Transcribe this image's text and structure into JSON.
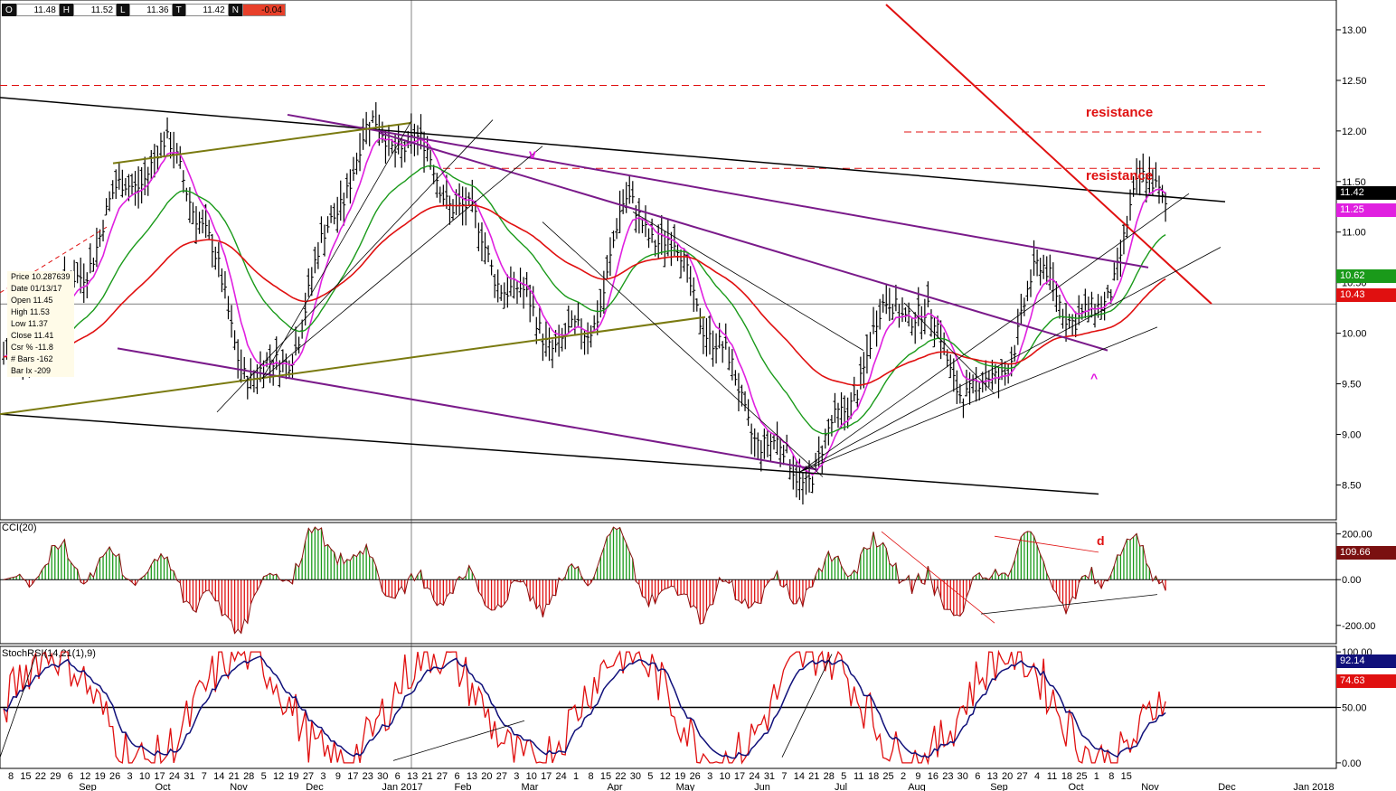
{
  "header": {
    "ohlc": [
      {
        "key": "O",
        "value": "11.48"
      },
      {
        "key": "H",
        "value": "11.52"
      },
      {
        "key": "L",
        "value": "11.36"
      },
      {
        "key": "T",
        "value": "11.42"
      },
      {
        "key": "N",
        "value": "-0.04"
      }
    ]
  },
  "info_box": {
    "lines": [
      "Price 10.287639",
      "Date 01/13/17",
      "Open 11.45",
      "High 11.53",
      "Low 11.37",
      "Close 11.41",
      "Csr % -11.8",
      "# Bars -162",
      "Bar Ix -209"
    ]
  },
  "annotations": {
    "resistance_1": "resistance",
    "resistance_2": "resistance",
    "v_mark": "v",
    "caret_mark": "^",
    "d_mark": "d"
  },
  "price_tags": {
    "last": "11.42",
    "ema_fast": "11.25",
    "ema_mid": "10.62",
    "ema_slow": "10.43",
    "cci": "109.66",
    "stoch_k": "92.14",
    "stoch_d": "74.63"
  },
  "colors": {
    "price_bars": "#000000",
    "ema_fast": "#e020e0",
    "ema_mid": "#1a9a1a",
    "ema_slow": "#e01010",
    "purple_channel": "#7a1a8a",
    "olive_line": "#7a7a10",
    "cci_up": "#1a9a1a",
    "cci_down": "#e01010",
    "cci_line": "#8a1010",
    "stoch_k": "#e01010",
    "stoch_d": "#10107a"
  },
  "chart_data": [
    {
      "type": "ohlc",
      "title": "",
      "y_axis": {
        "ticks": [
          8.5,
          9.0,
          9.5,
          10.0,
          10.5,
          11.0,
          11.5,
          12.0,
          12.5,
          13.0
        ],
        "tick_labels": [
          "8.50",
          "9.00",
          "9.50",
          "10.00",
          "10.50",
          "11.00",
          "11.50",
          "12.00",
          "12.50",
          "13.00"
        ],
        "ylim": [
          8.2,
          13.25
        ]
      },
      "x_axis": {
        "day_labels": [
          "8",
          "15",
          "22",
          "29",
          "6",
          "12",
          "19",
          "26",
          "3",
          "10",
          "17",
          "24",
          "31",
          "7",
          "14",
          "21",
          "28",
          "5",
          "12",
          "19",
          "27",
          "3",
          "9",
          "17",
          "23",
          "30",
          "6",
          "13",
          "21",
          "27",
          "6",
          "13",
          "20",
          "27",
          "3",
          "10",
          "17",
          "24",
          "1",
          "8",
          "15",
          "22",
          "30",
          "5",
          "12",
          "19",
          "26",
          "3",
          "10",
          "17",
          "24",
          "31",
          "7",
          "14",
          "21",
          "28",
          "5",
          "11",
          "18",
          "25",
          "2",
          "9",
          "16",
          "23",
          "30",
          "6",
          "13",
          "20",
          "27",
          "4",
          "11",
          "18",
          "25",
          "1",
          "8",
          "15"
        ],
        "month_labels": [
          "Sep",
          "Oct",
          "Nov",
          "Dec",
          "Jan 2017",
          "Feb",
          "Mar",
          "Apr",
          "May",
          "Jun",
          "Jul",
          "Aug",
          "Sep",
          "Oct",
          "Nov",
          "Dec",
          "Jan 2018"
        ]
      },
      "horizontal_levels": [
        12.45,
        11.99,
        11.63
      ],
      "crosshair_price": 10.29,
      "anchor_prices": {
        "start": 9.7,
        "aug16_high": 11.75,
        "nov16_low": 9.55,
        "jan17_high": 11.98,
        "mar17_low": 9.9,
        "apr17_high": 11.18,
        "jun17_low": 8.65,
        "aug17_high": 10.3,
        "aug17_low": 9.4,
        "sep17_high": 10.6,
        "oct17_low": 10.05,
        "nov17_high": 11.55,
        "last": 11.42
      }
    },
    {
      "type": "bar",
      "title": "CCI(20)",
      "y_axis": {
        "ticks": [
          200,
          0,
          -200
        ],
        "tick_labels": [
          "200.00",
          "0.00",
          "-200.00"
        ],
        "ylim": [
          -280,
          250
        ]
      },
      "last_value": 109.66
    },
    {
      "type": "line",
      "title": "StochRSI(14,21(1),9)",
      "y_axis": {
        "ticks": [
          100,
          50,
          0
        ],
        "tick_labels": [
          "100.00",
          "50.00",
          "0.00"
        ],
        "ylim": [
          -5,
          105
        ]
      },
      "series": [
        {
          "value": 74.63
        },
        {
          "value": 92.14
        }
      ]
    }
  ]
}
